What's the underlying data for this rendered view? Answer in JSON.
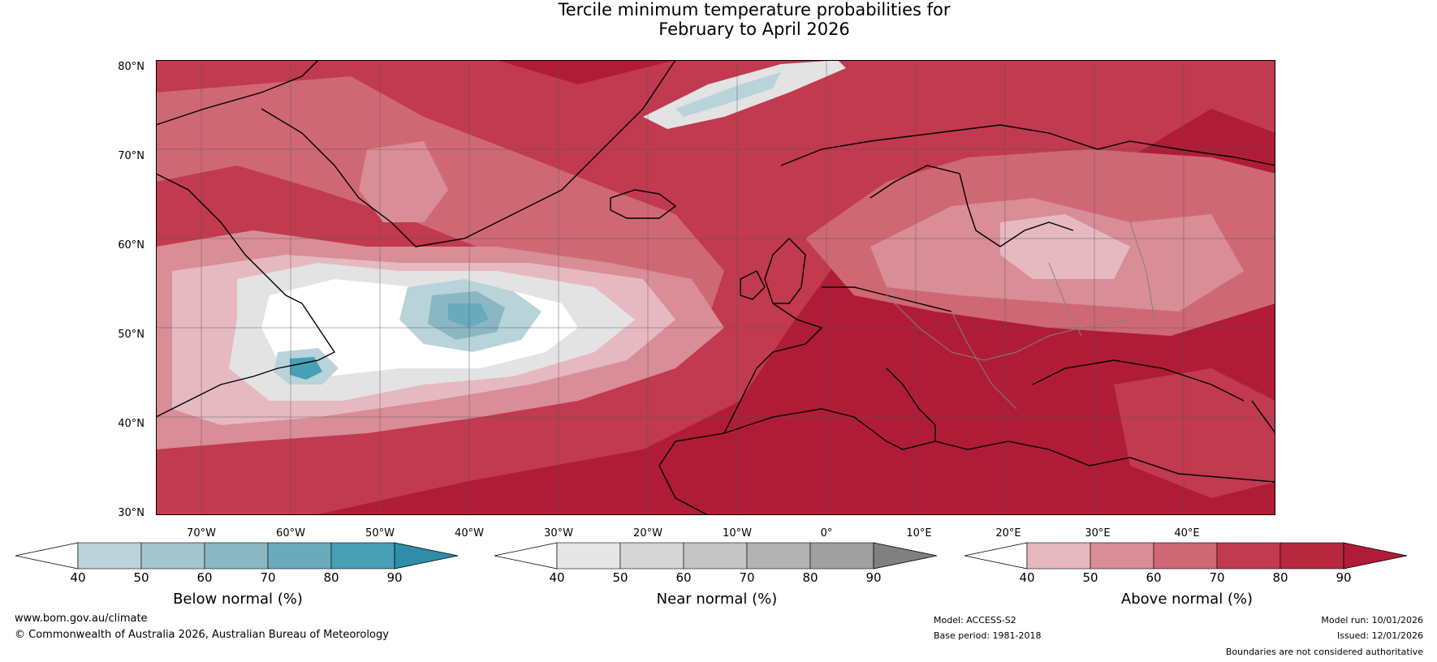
{
  "title": {
    "line1": "Tercile minimum temperature probabilities for",
    "line2": "February to April 2026"
  },
  "map": {
    "lat_labels": [
      "80°N",
      "70°N",
      "60°N",
      "50°N",
      "40°N",
      "30°N"
    ],
    "lon_labels": [
      "70°W",
      "60°W",
      "50°W",
      "40°W",
      "30°W",
      "20°W",
      "10°W",
      "0°",
      "10°E",
      "20°E",
      "30°E",
      "40°E"
    ],
    "colors": {
      "above_90": "#b01c38",
      "above_80": "#c13a4f",
      "above_70": "#cf6875",
      "above_60": "#d98d96",
      "above_50": "#e6b9c0",
      "near": "#e3e3e3",
      "below_50": "#b9d3db",
      "below_70": "#6aaabd",
      "below_80": "#47a0b5",
      "land_line": "#000000",
      "border_line": "#808080"
    }
  },
  "colorbars": {
    "ticks": [
      "40",
      "50",
      "60",
      "70",
      "80",
      "90"
    ],
    "below": {
      "label": "Below normal (%)",
      "colors": [
        "#bcd3da",
        "#a4c5cd",
        "#8ab7c2",
        "#6aaabd",
        "#47a0b5",
        "#2e8ea7"
      ]
    },
    "near": {
      "label": "Near normal (%)",
      "colors": [
        "#e6e6e6",
        "#d6d6d6",
        "#c5c5c5",
        "#b3b3b3",
        "#a0a0a0",
        "#808080"
      ]
    },
    "above": {
      "label": "Above normal (%)",
      "colors": [
        "#e6b9c0",
        "#d98d96",
        "#cf6875",
        "#c13a4f",
        "#b7283f",
        "#b01c38"
      ]
    }
  },
  "footer": {
    "website": "www.bom.gov.au/climate",
    "copyright": "© Commonwealth of Australia 2026, Australian Bureau of Meteorology",
    "model": "Model: ACCESS-S2",
    "base_period": "Base period: 1981-2018",
    "model_run": "Model run: 10/01/2026",
    "issued": "Issued: 12/01/2026",
    "disclaimer": "Boundaries are not considered authoritative"
  }
}
